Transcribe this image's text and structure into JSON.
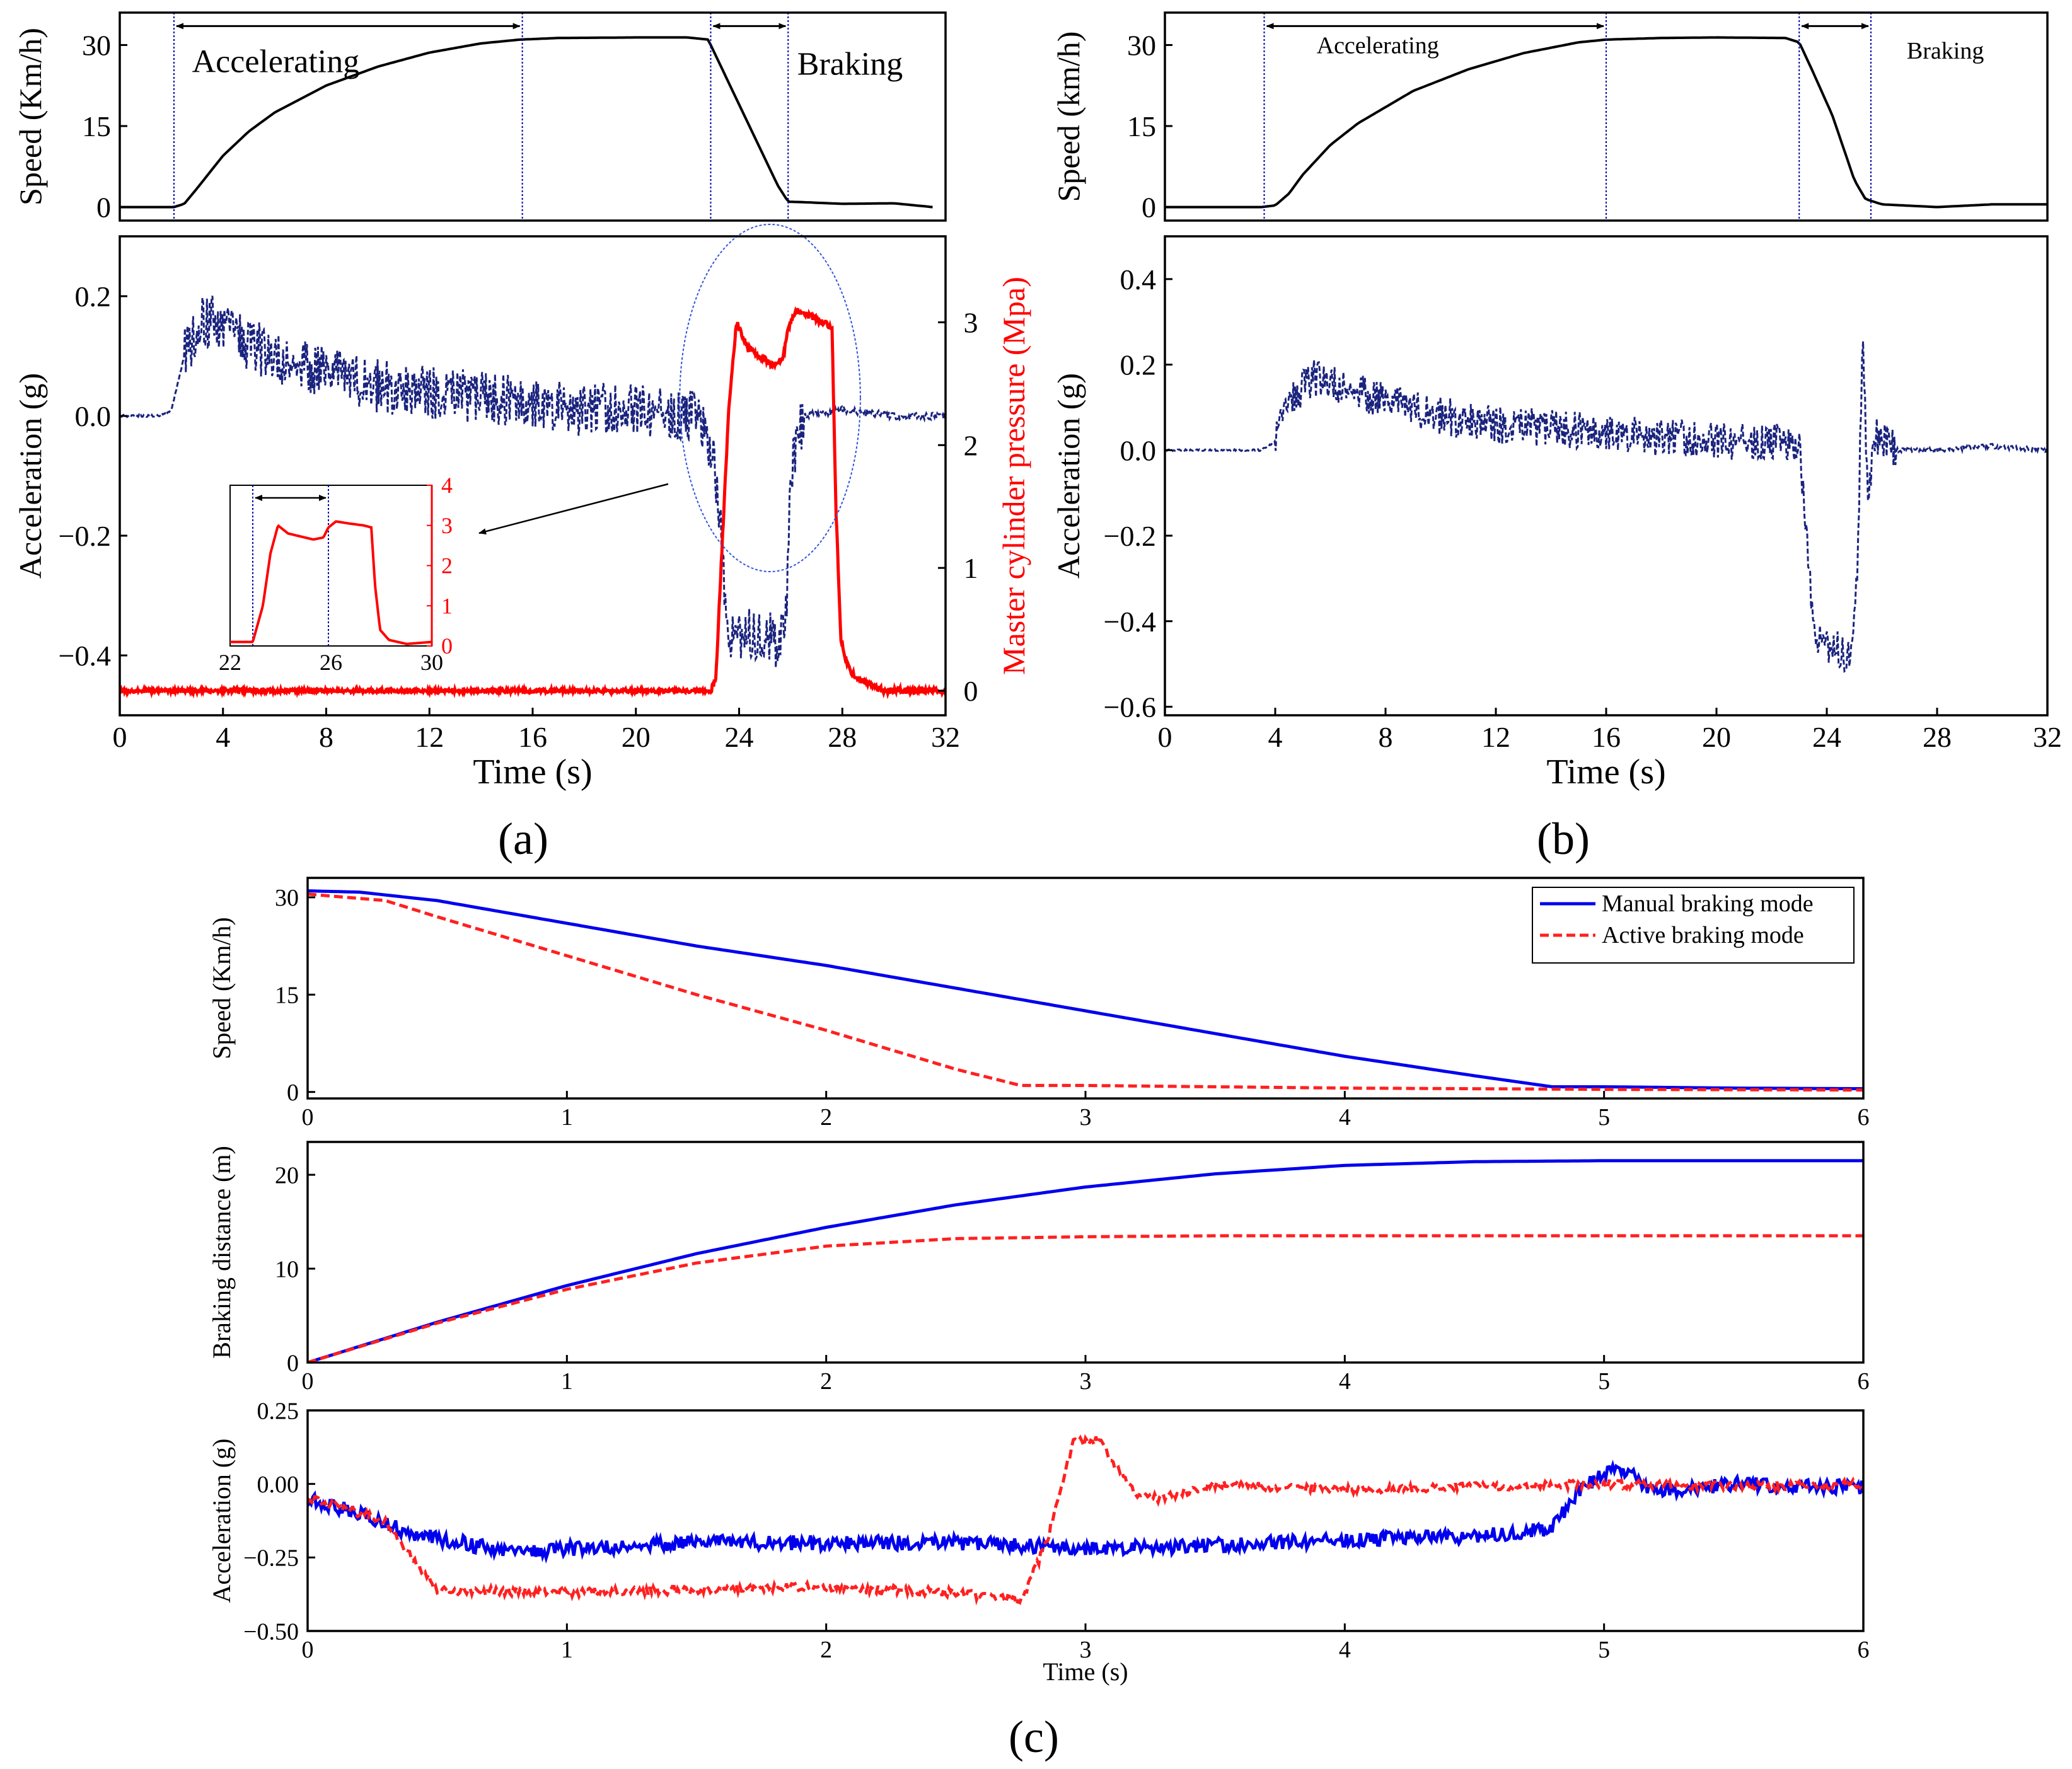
{
  "panel_labels": {
    "a": "(a)",
    "b": "(b)",
    "c": "(c)"
  },
  "colors": {
    "speed": "#000000",
    "accel": "#1a237e",
    "pressure": "#ff0000",
    "manual": "#0000ee",
    "active": "#ff2020",
    "marker": "#0000aa"
  },
  "chart_data": [
    {
      "id": "a_speed",
      "type": "line",
      "panel": "a",
      "xlabel": "",
      "ylabel": "Speed (Km/h)",
      "xlim": [
        0,
        32
      ],
      "ylim": [
        -2.5,
        36
      ],
      "xticks": [],
      "yticks": [
        0,
        15,
        30
      ],
      "series": [
        {
          "name": "Speed",
          "x": [
            0,
            2.1,
            2.5,
            3,
            4,
            5,
            6,
            8,
            10,
            12,
            14,
            15.5,
            17,
            20,
            22,
            22.8,
            23.5,
            24.5,
            25.5,
            25.9,
            26.5,
            28,
            30,
            31.5
          ],
          "y": [
            0,
            0,
            0.6,
            3.5,
            9.5,
            14,
            17.5,
            22.5,
            26,
            28.6,
            30.3,
            31,
            31.3,
            31.4,
            31.4,
            31,
            24,
            14,
            4,
            1,
            0.9,
            0.6,
            0.7,
            0
          ]
        }
      ],
      "markers": [
        2.1,
        15.6,
        22.9,
        25.9
      ],
      "annotations": [
        {
          "text": "Accelerating",
          "x": 2.8,
          "y": 25,
          "anchor": "start"
        },
        {
          "text": "Braking",
          "x": 28.3,
          "y": 24.5,
          "anchor": "middle"
        }
      ],
      "arrows": [
        {
          "from": 2.1,
          "to": 15.6,
          "y": 33.5
        },
        {
          "from": 22.9,
          "to": 25.9,
          "y": 33.5
        }
      ]
    },
    {
      "id": "a_accel",
      "type": "line",
      "panel": "a",
      "xlabel": "Time (s)",
      "ylabel": "Acceleration (g)",
      "xlim": [
        0,
        32
      ],
      "ylim": [
        -0.5,
        0.3
      ],
      "xticks": [
        0,
        4,
        8,
        12,
        16,
        20,
        24,
        28,
        32
      ],
      "yticks": [
        -0.4,
        -0.2,
        0.0,
        0.2
      ],
      "ytick_labels": [
        "−0.4",
        "−0.2",
        "0.0",
        "0.2"
      ],
      "series": [
        {
          "name": "Acceleration",
          "x": [
            0,
            1.5,
            2.0,
            2.5,
            3.0,
            3.5,
            4.0,
            5.0,
            6.0,
            8.0,
            10.0,
            12.0,
            14.0,
            16.0,
            18.0,
            20.0,
            22.0,
            22.5,
            23.0,
            23.3,
            23.5,
            24.0,
            25.0,
            25.5,
            25.8,
            26.0,
            26.5,
            28.0,
            30.0,
            32.0
          ],
          "y": [
            0,
            0,
            0.01,
            0.1,
            0.15,
            0.16,
            0.14,
            0.12,
            0.1,
            0.07,
            0.05,
            0.04,
            0.03,
            0.02,
            0.01,
            0.01,
            0.0,
            -0.01,
            -0.08,
            -0.2,
            -0.36,
            -0.37,
            -0.36,
            -0.38,
            -0.36,
            -0.1,
            0.0,
            0.01,
            0.0,
            0.0
          ]
        }
      ],
      "noise_amplitude": 0.045,
      "secondary": {
        "ylabel": "Master cylinder pressure (Mpa)",
        "ylim": [
          -0.2,
          3.7
        ],
        "yticks": [
          0,
          1,
          2,
          3
        ],
        "series": [
          {
            "name": "Master cylinder pressure",
            "x": [
              0,
              22.9,
              23.1,
              23.3,
              23.6,
              23.9,
              24.3,
              25.3,
              25.7,
              25.9,
              26.2,
              26.7,
              27.3,
              27.6,
              27.75,
              27.95,
              28.3,
              29.0,
              29.6,
              32.0
            ],
            "y": [
              0,
              0,
              0.1,
              1.0,
              2.3,
              3.0,
              2.8,
              2.65,
              2.7,
              2.95,
              3.1,
              3.05,
              3.0,
              2.95,
              1.5,
              0.4,
              0.15,
              0.05,
              0,
              0
            ]
          }
        ]
      },
      "ellipse": {
        "cx": 25.2,
        "cy": 0.03,
        "rx": 3.5,
        "ry": 0.29
      },
      "inset": {
        "xlim": [
          22,
          30
        ],
        "ylim": [
          0,
          4
        ],
        "xticks": [
          22,
          26,
          30
        ],
        "yticks": [
          0,
          1,
          2,
          3,
          4
        ],
        "markers": [
          22.9,
          25.9
        ],
        "series": [
          {
            "x": [
              22,
              22.9,
              23.3,
              23.6,
              23.9,
              24.3,
              25.3,
              25.7,
              25.9,
              26.2,
              26.7,
              27.3,
              27.6,
              27.75,
              27.95,
              28.3,
              29.0,
              30.0
            ],
            "y": [
              0.1,
              0.1,
              1.0,
              2.3,
              3.0,
              2.8,
              2.65,
              2.7,
              2.95,
              3.1,
              3.05,
              3.0,
              2.95,
              1.5,
              0.4,
              0.15,
              0.05,
              0.1
            ]
          }
        ]
      }
    },
    {
      "id": "b_speed",
      "type": "line",
      "panel": "b",
      "xlabel": "",
      "ylabel": "Speed (km/h)",
      "xlim": [
        0,
        32
      ],
      "ylim": [
        -2.5,
        36
      ],
      "xticks": [],
      "yticks": [
        0,
        15,
        30
      ],
      "series": [
        {
          "name": "Speed",
          "x": [
            0,
            3.5,
            4.0,
            4.5,
            5.0,
            6.0,
            7.0,
            9.0,
            11.0,
            13.0,
            15.0,
            16.0,
            18.0,
            20.0,
            22.5,
            23.0,
            23.5,
            24.2,
            25.0,
            25.4,
            26.0,
            28.0,
            30.0,
            32.0
          ],
          "y": [
            0,
            0,
            0.3,
            2.5,
            6,
            11.5,
            15.5,
            21.5,
            25.5,
            28.5,
            30.5,
            31,
            31.3,
            31.4,
            31.3,
            30.5,
            25,
            17,
            5,
            1.5,
            0.5,
            0,
            0.5,
            0.5
          ]
        }
      ],
      "markers": [
        3.6,
        16.0,
        23.0,
        25.6
      ],
      "annotations": [
        {
          "text": "Accelerating",
          "x": 5.5,
          "y": 28.5,
          "anchor": "start"
        },
        {
          "text": "Braking",
          "x": 28.3,
          "y": 27.5,
          "anchor": "middle"
        }
      ],
      "arrows": [
        {
          "from": 3.6,
          "to": 16.0,
          "y": 33.5
        },
        {
          "from": 23.0,
          "to": 25.6,
          "y": 33.5
        }
      ]
    },
    {
      "id": "b_accel",
      "type": "line",
      "panel": "b",
      "xlabel": "Time (s)",
      "ylabel": "Acceleration (g)",
      "xlim": [
        0,
        32
      ],
      "ylim": [
        -0.62,
        0.5
      ],
      "xticks": [
        0,
        4,
        8,
        12,
        16,
        20,
        24,
        28,
        32
      ],
      "yticks": [
        -0.6,
        -0.4,
        -0.2,
        0.0,
        0.2,
        0.4
      ],
      "ytick_labels": [
        "−0.6",
        "−0.4",
        "−0.2",
        "0.0",
        "0.2",
        "0.4"
      ],
      "series": [
        {
          "name": "Acceleration",
          "x": [
            0,
            3.5,
            4.0,
            4.5,
            5.0,
            5.5,
            6.5,
            8.0,
            10.0,
            12.0,
            14.0,
            16.0,
            18.0,
            20.0,
            22.0,
            23.0,
            23.2,
            23.5,
            24.0,
            24.5,
            24.8,
            25.1,
            25.3,
            25.5,
            25.8,
            26.5,
            28.0,
            30.0,
            32.0
          ],
          "y": [
            0,
            0,
            0.02,
            0.1,
            0.15,
            0.17,
            0.15,
            0.11,
            0.08,
            0.06,
            0.05,
            0.04,
            0.03,
            0.02,
            0.02,
            0.0,
            -0.15,
            -0.42,
            -0.46,
            -0.47,
            -0.48,
            -0.3,
            0.25,
            -0.1,
            0.03,
            0.0,
            0.0,
            0.01,
            0.0
          ]
        }
      ],
      "noise_amplitude": 0.045
    },
    {
      "id": "c_speed",
      "type": "line",
      "panel": "c",
      "xlabel": "",
      "ylabel": "Speed (Km/h)",
      "xlim": [
        0,
        6
      ],
      "ylim": [
        -1,
        33
      ],
      "xticks": [
        0,
        1,
        2,
        3,
        4,
        5,
        6
      ],
      "yticks": [
        0,
        15,
        30
      ],
      "series": [
        {
          "name": "Manual braking mode",
          "style": "solid",
          "x": [
            0,
            0.2,
            0.5,
            1.0,
            1.5,
            2.0,
            2.5,
            3.0,
            3.5,
            4.0,
            4.5,
            4.8,
            5.0,
            5.5,
            6.0
          ],
          "y": [
            31,
            30.8,
            29.5,
            26,
            22.5,
            19.5,
            16,
            12.5,
            9,
            5.5,
            2.5,
            0.8,
            0.8,
            0.6,
            0.5
          ]
        },
        {
          "name": "Active braking mode",
          "style": "dashed",
          "x": [
            0,
            0.3,
            0.5,
            1.0,
            1.5,
            2.0,
            2.5,
            2.75,
            2.85,
            3.0,
            3.5,
            4.0,
            5.0,
            6.0
          ],
          "y": [
            30.5,
            29.5,
            27,
            21,
            15,
            9.5,
            3.5,
            1.0,
            1.0,
            1.0,
            0.8,
            0.6,
            0.4,
            0.3
          ]
        }
      ],
      "legend": {
        "position": "top-right",
        "entries": [
          "Manual braking mode",
          "Active braking mode"
        ]
      }
    },
    {
      "id": "c_distance",
      "type": "line",
      "panel": "c",
      "xlabel": "",
      "ylabel": "Braking distance (m)",
      "xlim": [
        0,
        6
      ],
      "ylim": [
        0,
        23.5
      ],
      "xticks": [
        0,
        1,
        2,
        3,
        4,
        5,
        6
      ],
      "yticks": [
        0,
        10,
        20
      ],
      "series": [
        {
          "name": "Manual braking mode",
          "style": "solid",
          "x": [
            0,
            0.5,
            1.0,
            1.5,
            2.0,
            2.5,
            3.0,
            3.5,
            4.0,
            4.5,
            5.0,
            6.0
          ],
          "y": [
            0,
            4.3,
            8.2,
            11.6,
            14.4,
            16.8,
            18.7,
            20.1,
            21.0,
            21.4,
            21.5,
            21.5
          ]
        },
        {
          "name": "Active braking mode",
          "style": "dashed",
          "x": [
            0,
            0.5,
            1.0,
            1.5,
            2.0,
            2.5,
            3.0,
            3.5,
            4.0,
            5.0,
            6.0
          ],
          "y": [
            0,
            4.2,
            7.8,
            10.6,
            12.4,
            13.2,
            13.4,
            13.5,
            13.5,
            13.5,
            13.5
          ]
        }
      ]
    },
    {
      "id": "c_accel",
      "type": "line",
      "panel": "c",
      "xlabel": "Time (s)",
      "ylabel": "Acceleration (g)",
      "xlim": [
        0,
        6
      ],
      "ylim": [
        -0.5,
        0.25
      ],
      "xticks": [
        0,
        1,
        2,
        3,
        4,
        5,
        6
      ],
      "yticks": [
        -0.5,
        -0.25,
        0.0,
        0.25
      ],
      "ytick_labels": [
        "−0.50",
        "−0.25",
        "0.00",
        "0.25"
      ],
      "series": [
        {
          "name": "Manual braking mode",
          "style": "solid",
          "x": [
            0,
            0.2,
            0.4,
            0.6,
            0.8,
            1.0,
            1.5,
            2.0,
            2.5,
            3.0,
            3.5,
            4.0,
            4.5,
            4.8,
            4.9,
            5.0,
            5.1,
            5.2,
            5.5,
            6.0
          ],
          "y": [
            -0.05,
            -0.1,
            -0.17,
            -0.2,
            -0.24,
            -0.22,
            -0.2,
            -0.2,
            -0.2,
            -0.22,
            -0.21,
            -0.19,
            -0.18,
            -0.15,
            -0.03,
            0.04,
            0.04,
            -0.03,
            0.0,
            -0.01
          ]
        },
        {
          "name": "Active braking mode",
          "style": "dashed",
          "x": [
            0,
            0.2,
            0.3,
            0.4,
            0.5,
            1.0,
            1.5,
            2.0,
            2.5,
            2.75,
            2.85,
            2.95,
            3.05,
            3.1,
            3.2,
            3.3,
            3.5,
            4.0,
            4.5,
            5.0,
            5.5,
            6.0
          ],
          "y": [
            -0.05,
            -0.1,
            -0.13,
            -0.25,
            -0.36,
            -0.37,
            -0.36,
            -0.35,
            -0.37,
            -0.4,
            -0.2,
            0.14,
            0.15,
            0.08,
            -0.04,
            -0.05,
            0.0,
            -0.02,
            -0.01,
            0.0,
            -0.01,
            0.0
          ]
        }
      ],
      "noise_amplitude": 0.025
    }
  ]
}
